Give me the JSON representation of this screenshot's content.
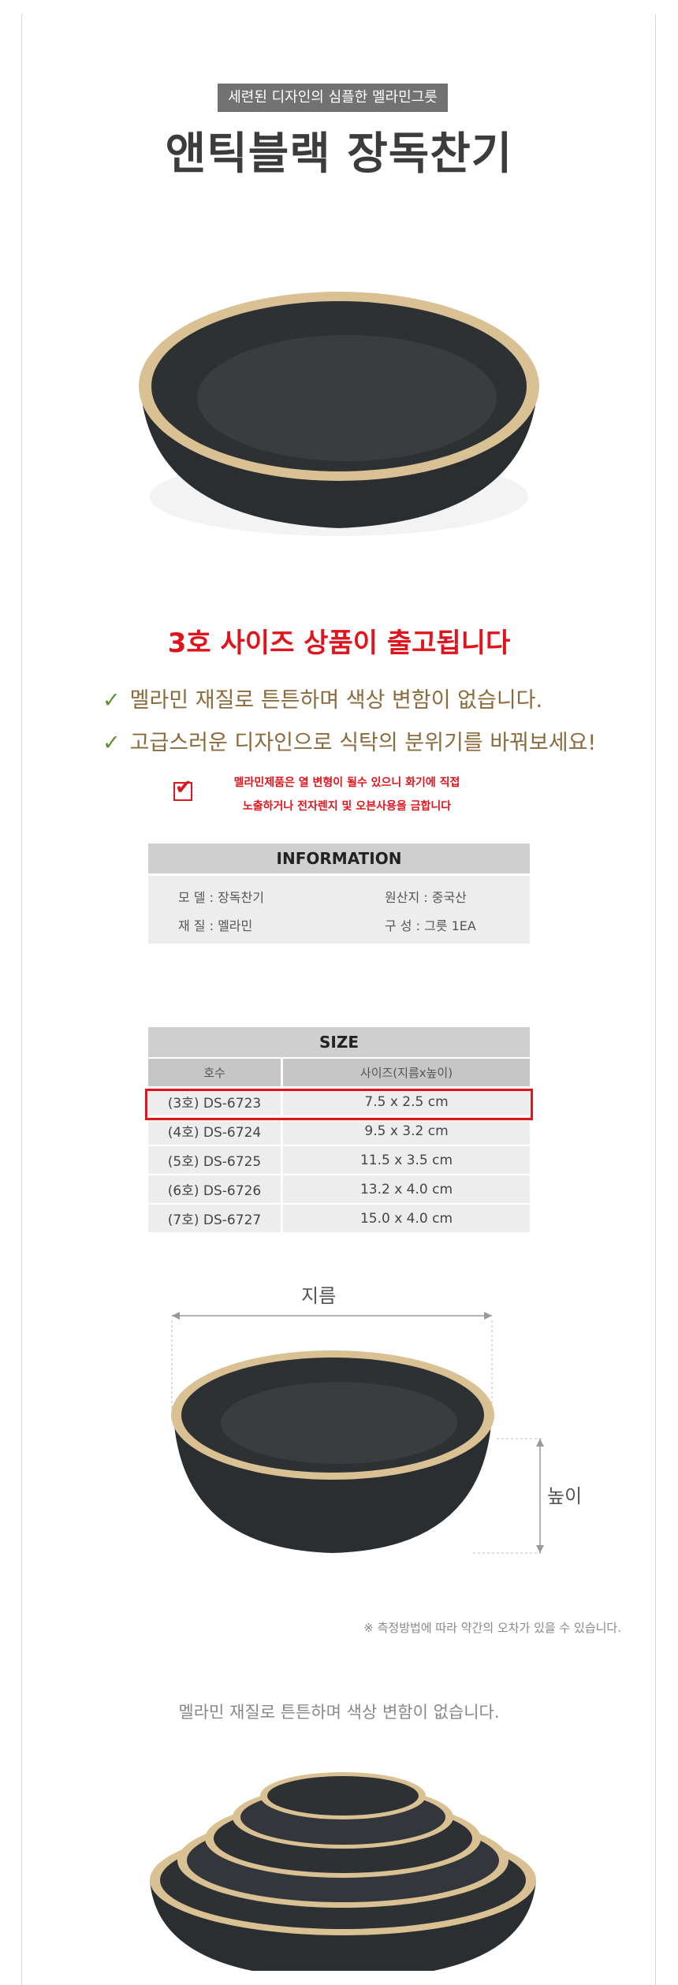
{
  "header": {
    "subtitle": "세련된 디자인의 심플한 멜라민그릇",
    "title": "앤틱블랙 장독찬기"
  },
  "notice": {
    "shipping": "3호 사이즈 상품이 출고됩니다",
    "features": [
      "멜라민 재질로 튼튼하며 색상 변함이 없습니다.",
      "고급스러운 디자인으로 식탁의 분위기를 바꿔보세요!"
    ],
    "warning_lines": [
      "멜라민제품은 열 변형이 될수 있으니 화기에 직접",
      "노출하거나 전자렌지 및 오븐사용을 금합니다"
    ],
    "check_mark": "✓",
    "warning_check": "✔"
  },
  "information": {
    "title": "INFORMATION",
    "items": [
      {
        "text": "모  델 : 장독찬기"
      },
      {
        "text": "원산지 : 중국산"
      },
      {
        "text": "재  질 : 멜라민"
      },
      {
        "text": "구  성 : 그릇 1EA"
      }
    ]
  },
  "size_table": {
    "title": "SIZE",
    "columns": [
      "호수",
      "사이즈(지름x높이)"
    ],
    "rows": [
      {
        "model": "(3호) DS-6723",
        "size": "7.5 x 2.5 cm",
        "highlighted": true
      },
      {
        "model": "(4호) DS-6724",
        "size": "9.5 x 3.2 cm"
      },
      {
        "model": "(5호) DS-6725",
        "size": "11.5 x 3.5 cm"
      },
      {
        "model": "(6호) DS-6726",
        "size": "13.2 x 4.0 cm"
      },
      {
        "model": "(7호) DS-6727",
        "size": "15.0 x 4.0 cm"
      }
    ]
  },
  "diagram": {
    "diameter_label": "지름",
    "height_label": "높이",
    "note": "※ 측정방법에 따라 약간의 오차가 있을 수 있습니다."
  },
  "bottom": {
    "caption": "멜라민 재질로 튼튼하며 색상 변함이 없습니다."
  },
  "colors": {
    "accent_red": "#e0141c",
    "feature_brown": "#8b6a3c",
    "check_green": "#5f8f2e",
    "rim_beige": "#d9c193",
    "bowl_black": "#2e3133"
  }
}
